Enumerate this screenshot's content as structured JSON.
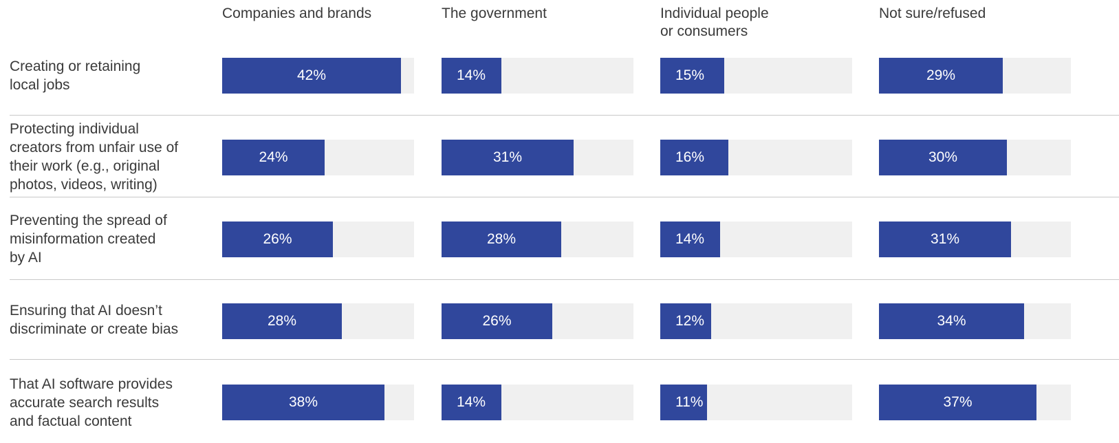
{
  "chart_data": {
    "type": "bar",
    "orientation": "horizontal",
    "layout": "small-multiples",
    "columns": [
      "Companies and brands",
      "The government",
      "Individual people\nor consumers",
      "Not sure/refused"
    ],
    "categories": [
      "Creating or retaining\nlocal jobs",
      "Protecting individual\ncreators from unfair use of\ntheir work (e.g., original\nphotos, videos, writing)",
      "Preventing the spread of\nmisinformation created\nby AI",
      "Ensuring that AI doesn’t\ndiscriminate or create bias",
      "That AI software provides\naccurate search results\nand factual content"
    ],
    "series": [
      {
        "name": "Companies and brands",
        "values": [
          42,
          24,
          26,
          28,
          38
        ],
        "labels": [
          "42%",
          "24%",
          "26%",
          "28%",
          "38%"
        ]
      },
      {
        "name": "The government",
        "values": [
          14,
          31,
          28,
          26,
          14
        ],
        "labels": [
          "14%",
          "31%",
          "28%",
          "26%",
          "14%"
        ]
      },
      {
        "name": "Individual people or consumers",
        "values": [
          15,
          16,
          14,
          12,
          11
        ],
        "labels": [
          "15%",
          "16%",
          "14%",
          "12%",
          "11%"
        ]
      },
      {
        "name": "Not sure/refused",
        "values": [
          29,
          30,
          31,
          34,
          37
        ],
        "labels": [
          "29%",
          "30%",
          "31%",
          "34%",
          "37%"
        ]
      }
    ],
    "xlim": [
      0,
      45
    ],
    "unit": "%",
    "grid": false,
    "legend": "none",
    "colors": {
      "bar": "#30479c",
      "track": "#f0f0f0",
      "divider": "#c8c8c8",
      "text": "#3a3a3a",
      "value_text": "#ffffff"
    }
  }
}
